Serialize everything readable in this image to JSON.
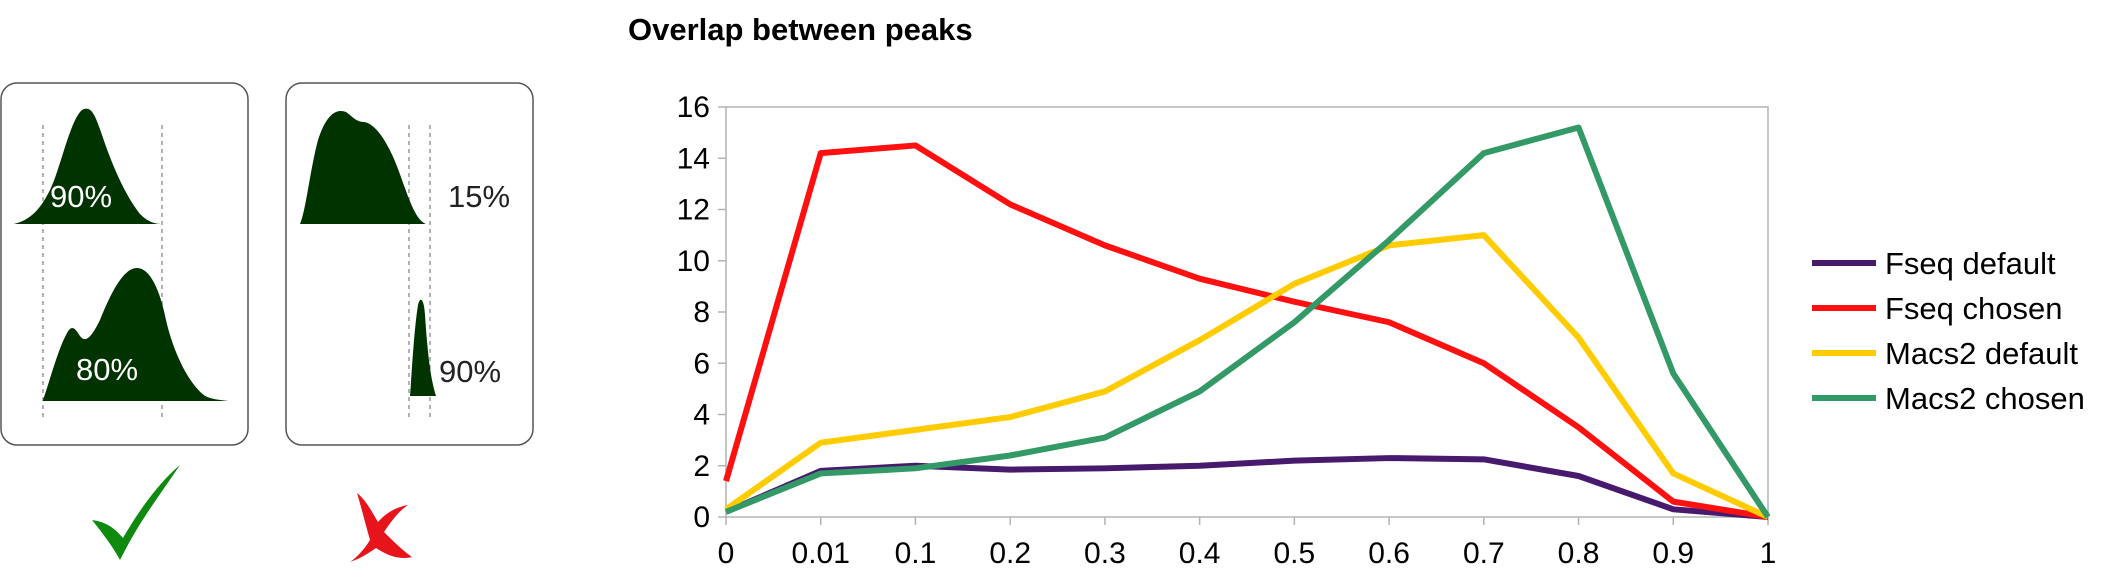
{
  "illustration": {
    "good_panel": {
      "top_percent": "90%",
      "bottom_percent": "80%",
      "verdict_color": "#0f8a0f",
      "verdict_icon": "checkmark-icon"
    },
    "bad_panel": {
      "top_percent": "15%",
      "bottom_percent": "90%",
      "verdict_color": "#e8141c",
      "verdict_icon": "cross-icon"
    },
    "peak_color": "#003300"
  },
  "chart_data": {
    "type": "line",
    "title": "Overlap between peaks",
    "xlabel": "",
    "ylabel": "",
    "categories": [
      "0",
      "0.01",
      "0.1",
      "0.2",
      "0.3",
      "0.4",
      "0.5",
      "0.6",
      "0.7",
      "0.8",
      "0.9",
      "1"
    ],
    "ylim": [
      0,
      16
    ],
    "yticks": [
      0,
      2,
      4,
      6,
      8,
      10,
      12,
      14,
      16
    ],
    "grid": false,
    "legend_position": "right",
    "series": [
      {
        "name": "Fseq default",
        "color": "#471a6e",
        "values": [
          0.2,
          1.8,
          2.0,
          1.85,
          1.9,
          2.0,
          2.2,
          2.3,
          2.25,
          1.6,
          0.3,
          0.0
        ]
      },
      {
        "name": "Fseq chosen",
        "color": "#ff1010",
        "values": [
          1.4,
          14.2,
          14.5,
          12.2,
          10.6,
          9.3,
          8.4,
          7.6,
          6.0,
          3.5,
          0.6,
          0.0
        ]
      },
      {
        "name": "Macs2 default",
        "color": "#ffcc00",
        "values": [
          0.3,
          2.9,
          3.4,
          3.9,
          4.9,
          6.9,
          9.1,
          10.6,
          11.0,
          7.0,
          1.7,
          0.0
        ]
      },
      {
        "name": "Macs2 chosen",
        "color": "#339966",
        "values": [
          0.2,
          1.7,
          1.9,
          2.4,
          3.1,
          4.9,
          7.6,
          10.8,
          14.2,
          15.2,
          5.6,
          0.0
        ]
      }
    ]
  }
}
